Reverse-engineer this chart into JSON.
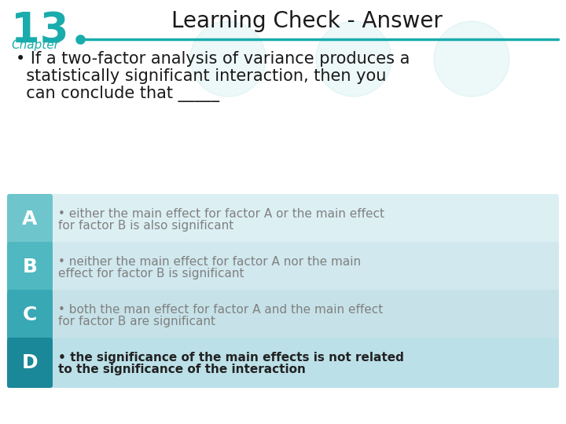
{
  "title": "Learning Check - Answer",
  "chapter_num": "13",
  "chapter_label": "Chapter",
  "teal_color": "#1AACAC",
  "light_blue_bg": "#D4EBF0",
  "question_lines": [
    "• If a two-factor analysis of variance produces a",
    "  statistically significant interaction, then you",
    "  can conclude that _____"
  ],
  "options": [
    {
      "letter": "A",
      "lines": [
        "• either the main effect for factor A or the main effect",
        "  for factor B is also significant"
      ],
      "letter_bg": "#6EC6CC",
      "row_bg": "#DCF0F4",
      "bold": false,
      "text_color": "#808080"
    },
    {
      "letter": "B",
      "lines": [
        "• neither the main effect for factor A nor the main",
        "  effect for factor B is significant"
      ],
      "letter_bg": "#50B8C0",
      "row_bg": "#D0E8EE",
      "bold": false,
      "text_color": "#808080"
    },
    {
      "letter": "C",
      "lines": [
        "• both the man effect for factor A and the main effect",
        "  for factor B are significant"
      ],
      "letter_bg": "#38A8B4",
      "row_bg": "#C6E2E8",
      "bold": false,
      "text_color": "#808080"
    },
    {
      "letter": "D",
      "lines": [
        "• the significance of the main effects is not related",
        "  to the significance of the interaction"
      ],
      "letter_bg": "#1A8898",
      "row_bg": "#BCE0E8",
      "bold": true,
      "text_color": "#222222"
    }
  ],
  "bg_color": "#FFFFFF",
  "title_fontsize": 20,
  "question_fontsize": 15,
  "option_letter_fontsize": 18,
  "option_text_fontsize": 11
}
